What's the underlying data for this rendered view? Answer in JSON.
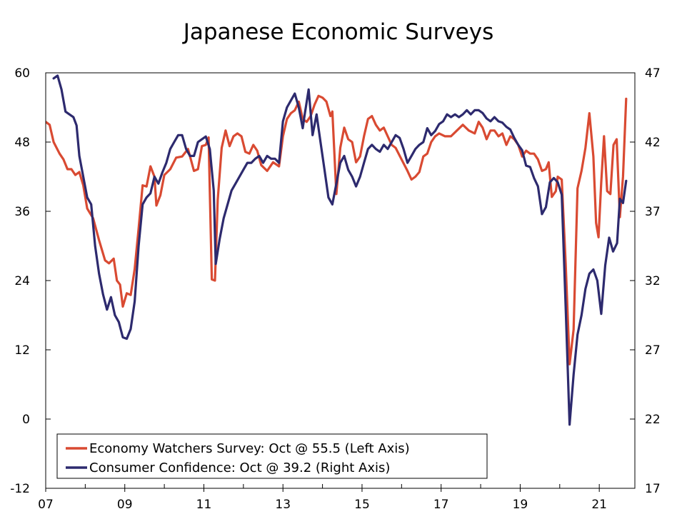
{
  "chart_data": {
    "type": "line",
    "title": "Japanese Economic Surveys",
    "x_range": [
      2007,
      2021.9
    ],
    "x_ticks": [
      {
        "value": 2007,
        "label": "07"
      },
      {
        "value": 2009,
        "label": "09"
      },
      {
        "value": 2011,
        "label": "11"
      },
      {
        "value": 2013,
        "label": "13"
      },
      {
        "value": 2015,
        "label": "15"
      },
      {
        "value": 2017,
        "label": "17"
      },
      {
        "value": 2019,
        "label": "19"
      },
      {
        "value": 2021,
        "label": "21"
      }
    ],
    "left_axis": {
      "min": -12,
      "max": 60,
      "ticks": [
        60,
        48,
        36,
        24,
        12,
        0,
        -12
      ]
    },
    "right_axis": {
      "min": 17,
      "max": 47,
      "ticks": [
        47,
        42,
        37,
        32,
        27,
        22,
        17
      ]
    },
    "grid": false,
    "legend_position": "bottom-left",
    "series": [
      {
        "name": "Economy Watchers Survey: Oct @ 55.5 (Left Axis)",
        "axis": "left",
        "color": "#d94a32",
        "points": [
          [
            2007.0,
            51.5
          ],
          [
            2007.1,
            51.0
          ],
          [
            2007.2,
            48.0
          ],
          [
            2007.35,
            46.0
          ],
          [
            2007.45,
            45.0
          ],
          [
            2007.55,
            43.3
          ],
          [
            2007.65,
            43.3
          ],
          [
            2007.75,
            42.3
          ],
          [
            2007.85,
            42.8
          ],
          [
            2007.95,
            40.5
          ],
          [
            2008.05,
            36.5
          ],
          [
            2008.2,
            34.8
          ],
          [
            2008.35,
            31.0
          ],
          [
            2008.5,
            27.5
          ],
          [
            2008.6,
            27.0
          ],
          [
            2008.72,
            27.8
          ],
          [
            2008.8,
            24.0
          ],
          [
            2008.88,
            23.3
          ],
          [
            2008.95,
            19.5
          ],
          [
            2009.05,
            21.8
          ],
          [
            2009.15,
            21.5
          ],
          [
            2009.25,
            26.0
          ],
          [
            2009.35,
            33.0
          ],
          [
            2009.45,
            40.5
          ],
          [
            2009.55,
            40.3
          ],
          [
            2009.65,
            43.8
          ],
          [
            2009.75,
            42.0
          ],
          [
            2009.8,
            37.0
          ],
          [
            2009.9,
            38.8
          ],
          [
            2010.0,
            42.3
          ],
          [
            2010.15,
            43.3
          ],
          [
            2010.3,
            45.3
          ],
          [
            2010.45,
            45.5
          ],
          [
            2010.6,
            46.8
          ],
          [
            2010.75,
            43.0
          ],
          [
            2010.85,
            43.3
          ],
          [
            2010.95,
            47.3
          ],
          [
            2011.05,
            47.5
          ],
          [
            2011.12,
            48.8
          ],
          [
            2011.2,
            24.2
          ],
          [
            2011.28,
            24.0
          ],
          [
            2011.35,
            38.0
          ],
          [
            2011.45,
            47.0
          ],
          [
            2011.55,
            50.0
          ],
          [
            2011.65,
            47.3
          ],
          [
            2011.75,
            49.0
          ],
          [
            2011.85,
            49.5
          ],
          [
            2011.95,
            49.0
          ],
          [
            2012.05,
            46.3
          ],
          [
            2012.15,
            46.0
          ],
          [
            2012.25,
            47.5
          ],
          [
            2012.35,
            46.5
          ],
          [
            2012.45,
            44.0
          ],
          [
            2012.6,
            43.0
          ],
          [
            2012.75,
            44.5
          ],
          [
            2012.9,
            43.8
          ],
          [
            2013.0,
            49.0
          ],
          [
            2013.1,
            52.0
          ],
          [
            2013.2,
            53.0
          ],
          [
            2013.3,
            53.5
          ],
          [
            2013.4,
            55.0
          ],
          [
            2013.5,
            52.0
          ],
          [
            2013.6,
            51.5
          ],
          [
            2013.7,
            52.5
          ],
          [
            2013.8,
            54.5
          ],
          [
            2013.9,
            56.0
          ],
          [
            2014.0,
            55.7
          ],
          [
            2014.1,
            55.0
          ],
          [
            2014.2,
            52.5
          ],
          [
            2014.25,
            53.3
          ],
          [
            2014.35,
            39.0
          ],
          [
            2014.45,
            47.0
          ],
          [
            2014.55,
            50.5
          ],
          [
            2014.65,
            48.5
          ],
          [
            2014.75,
            48.0
          ],
          [
            2014.85,
            44.5
          ],
          [
            2014.95,
            45.5
          ],
          [
            2015.05,
            49.0
          ],
          [
            2015.15,
            52.0
          ],
          [
            2015.25,
            52.5
          ],
          [
            2015.35,
            51.0
          ],
          [
            2015.45,
            50.0
          ],
          [
            2015.55,
            50.5
          ],
          [
            2015.65,
            49.0
          ],
          [
            2015.75,
            47.5
          ],
          [
            2015.85,
            47.0
          ],
          [
            2016.0,
            45.0
          ],
          [
            2016.15,
            43.0
          ],
          [
            2016.25,
            41.5
          ],
          [
            2016.35,
            42.0
          ],
          [
            2016.45,
            42.8
          ],
          [
            2016.55,
            45.5
          ],
          [
            2016.65,
            46.0
          ],
          [
            2016.75,
            48.0
          ],
          [
            2016.85,
            49.0
          ],
          [
            2016.95,
            49.5
          ],
          [
            2017.1,
            49.0
          ],
          [
            2017.25,
            49.0
          ],
          [
            2017.4,
            50.0
          ],
          [
            2017.55,
            51.0
          ],
          [
            2017.7,
            50.0
          ],
          [
            2017.85,
            49.5
          ],
          [
            2017.95,
            51.5
          ],
          [
            2018.05,
            50.5
          ],
          [
            2018.15,
            48.5
          ],
          [
            2018.25,
            50.0
          ],
          [
            2018.35,
            50.0
          ],
          [
            2018.45,
            49.0
          ],
          [
            2018.55,
            49.5
          ],
          [
            2018.65,
            47.5
          ],
          [
            2018.75,
            49.0
          ],
          [
            2018.85,
            48.5
          ],
          [
            2018.95,
            47.5
          ],
          [
            2019.05,
            45.5
          ],
          [
            2019.15,
            46.5
          ],
          [
            2019.25,
            46.0
          ],
          [
            2019.35,
            46.0
          ],
          [
            2019.45,
            45.0
          ],
          [
            2019.55,
            43.0
          ],
          [
            2019.65,
            43.3
          ],
          [
            2019.72,
            44.5
          ],
          [
            2019.8,
            38.5
          ],
          [
            2019.9,
            39.5
          ],
          [
            2019.95,
            42.0
          ],
          [
            2020.05,
            41.5
          ],
          [
            2020.15,
            27.0
          ],
          [
            2020.25,
            9.5
          ],
          [
            2020.35,
            15.5
          ],
          [
            2020.45,
            40.0
          ],
          [
            2020.55,
            43.0
          ],
          [
            2020.65,
            47.0
          ],
          [
            2020.75,
            53.0
          ],
          [
            2020.85,
            45.5
          ],
          [
            2020.92,
            34.0
          ],
          [
            2020.98,
            31.5
          ],
          [
            2021.05,
            41.0
          ],
          [
            2021.12,
            49.0
          ],
          [
            2021.2,
            39.5
          ],
          [
            2021.28,
            39.0
          ],
          [
            2021.36,
            47.5
          ],
          [
            2021.44,
            48.5
          ],
          [
            2021.52,
            35.0
          ],
          [
            2021.6,
            42.0
          ],
          [
            2021.68,
            55.5
          ]
        ]
      },
      {
        "name": "Consumer Confidence: Oct @ 39.2 (Right Axis)",
        "axis": "right",
        "color": "#2d2a6e",
        "points": [
          [
            2007.2,
            46.6
          ],
          [
            2007.3,
            46.8
          ],
          [
            2007.4,
            45.8
          ],
          [
            2007.5,
            44.2
          ],
          [
            2007.6,
            44.0
          ],
          [
            2007.7,
            43.8
          ],
          [
            2007.78,
            43.2
          ],
          [
            2007.85,
            41.0
          ],
          [
            2007.95,
            39.5
          ],
          [
            2008.05,
            38.0
          ],
          [
            2008.15,
            37.5
          ],
          [
            2008.25,
            34.5
          ],
          [
            2008.35,
            32.5
          ],
          [
            2008.45,
            31.0
          ],
          [
            2008.55,
            29.9
          ],
          [
            2008.65,
            30.8
          ],
          [
            2008.75,
            29.5
          ],
          [
            2008.85,
            29.0
          ],
          [
            2008.95,
            27.9
          ],
          [
            2009.05,
            27.8
          ],
          [
            2009.15,
            28.5
          ],
          [
            2009.25,
            30.5
          ],
          [
            2009.35,
            34.5
          ],
          [
            2009.45,
            37.5
          ],
          [
            2009.55,
            38.0
          ],
          [
            2009.65,
            38.3
          ],
          [
            2009.75,
            39.5
          ],
          [
            2009.85,
            39.0
          ],
          [
            2009.95,
            39.8
          ],
          [
            2010.05,
            40.5
          ],
          [
            2010.15,
            41.5
          ],
          [
            2010.25,
            42.0
          ],
          [
            2010.35,
            42.5
          ],
          [
            2010.45,
            42.5
          ],
          [
            2010.55,
            41.5
          ],
          [
            2010.65,
            41.0
          ],
          [
            2010.75,
            41.0
          ],
          [
            2010.85,
            42.0
          ],
          [
            2010.95,
            42.2
          ],
          [
            2011.05,
            42.4
          ],
          [
            2011.15,
            41.5
          ],
          [
            2011.25,
            38.5
          ],
          [
            2011.3,
            33.2
          ],
          [
            2011.4,
            35.0
          ],
          [
            2011.5,
            36.5
          ],
          [
            2011.6,
            37.5
          ],
          [
            2011.7,
            38.5
          ],
          [
            2011.8,
            39.0
          ],
          [
            2011.9,
            39.5
          ],
          [
            2012.0,
            40.0
          ],
          [
            2012.1,
            40.5
          ],
          [
            2012.2,
            40.5
          ],
          [
            2012.3,
            40.8
          ],
          [
            2012.4,
            41.0
          ],
          [
            2012.5,
            40.5
          ],
          [
            2012.6,
            41.0
          ],
          [
            2012.7,
            40.8
          ],
          [
            2012.8,
            40.8
          ],
          [
            2012.9,
            40.5
          ],
          [
            2013.0,
            43.5
          ],
          [
            2013.1,
            44.5
          ],
          [
            2013.2,
            45.0
          ],
          [
            2013.3,
            45.5
          ],
          [
            2013.4,
            44.5
          ],
          [
            2013.5,
            43.0
          ],
          [
            2013.55,
            44.0
          ],
          [
            2013.65,
            45.8
          ],
          [
            2013.75,
            42.5
          ],
          [
            2013.85,
            44.0
          ],
          [
            2013.95,
            42.0
          ],
          [
            2014.05,
            40.0
          ],
          [
            2014.15,
            38.0
          ],
          [
            2014.25,
            37.5
          ],
          [
            2014.35,
            39.0
          ],
          [
            2014.45,
            40.5
          ],
          [
            2014.55,
            41.0
          ],
          [
            2014.65,
            40.0
          ],
          [
            2014.75,
            39.5
          ],
          [
            2014.85,
            38.8
          ],
          [
            2014.95,
            39.5
          ],
          [
            2015.05,
            40.5
          ],
          [
            2015.15,
            41.5
          ],
          [
            2015.25,
            41.8
          ],
          [
            2015.35,
            41.5
          ],
          [
            2015.45,
            41.3
          ],
          [
            2015.55,
            41.8
          ],
          [
            2015.65,
            41.5
          ],
          [
            2015.75,
            42.0
          ],
          [
            2015.85,
            42.5
          ],
          [
            2015.95,
            42.3
          ],
          [
            2016.05,
            41.5
          ],
          [
            2016.15,
            40.5
          ],
          [
            2016.25,
            41.0
          ],
          [
            2016.35,
            41.5
          ],
          [
            2016.45,
            41.8
          ],
          [
            2016.55,
            42.0
          ],
          [
            2016.65,
            43.0
          ],
          [
            2016.75,
            42.5
          ],
          [
            2016.85,
            42.8
          ],
          [
            2016.95,
            43.3
          ],
          [
            2017.05,
            43.5
          ],
          [
            2017.15,
            44.0
          ],
          [
            2017.25,
            43.8
          ],
          [
            2017.35,
            44.0
          ],
          [
            2017.45,
            43.8
          ],
          [
            2017.55,
            44.0
          ],
          [
            2017.65,
            44.3
          ],
          [
            2017.75,
            44.0
          ],
          [
            2017.85,
            44.3
          ],
          [
            2017.95,
            44.3
          ],
          [
            2018.05,
            44.1
          ],
          [
            2018.15,
            43.7
          ],
          [
            2018.25,
            43.5
          ],
          [
            2018.35,
            43.8
          ],
          [
            2018.45,
            43.5
          ],
          [
            2018.55,
            43.4
          ],
          [
            2018.65,
            43.1
          ],
          [
            2018.75,
            42.9
          ],
          [
            2018.85,
            42.3
          ],
          [
            2018.95,
            41.8
          ],
          [
            2019.05,
            41.4
          ],
          [
            2019.15,
            40.3
          ],
          [
            2019.25,
            40.2
          ],
          [
            2019.35,
            39.4
          ],
          [
            2019.45,
            38.8
          ],
          [
            2019.55,
            36.8
          ],
          [
            2019.65,
            37.3
          ],
          [
            2019.75,
            39.1
          ],
          [
            2019.85,
            39.4
          ],
          [
            2019.95,
            39.1
          ],
          [
            2020.05,
            38.2
          ],
          [
            2020.15,
            30.1
          ],
          [
            2020.25,
            21.6
          ],
          [
            2020.35,
            25.2
          ],
          [
            2020.45,
            28.1
          ],
          [
            2020.55,
            29.5
          ],
          [
            2020.65,
            31.4
          ],
          [
            2020.75,
            32.5
          ],
          [
            2020.85,
            32.8
          ],
          [
            2020.95,
            32.0
          ],
          [
            2021.05,
            29.6
          ],
          [
            2021.15,
            33.1
          ],
          [
            2021.25,
            35.1
          ],
          [
            2021.35,
            34.1
          ],
          [
            2021.45,
            34.7
          ],
          [
            2021.52,
            37.9
          ],
          [
            2021.6,
            37.6
          ],
          [
            2021.68,
            39.2
          ]
        ]
      }
    ]
  }
}
